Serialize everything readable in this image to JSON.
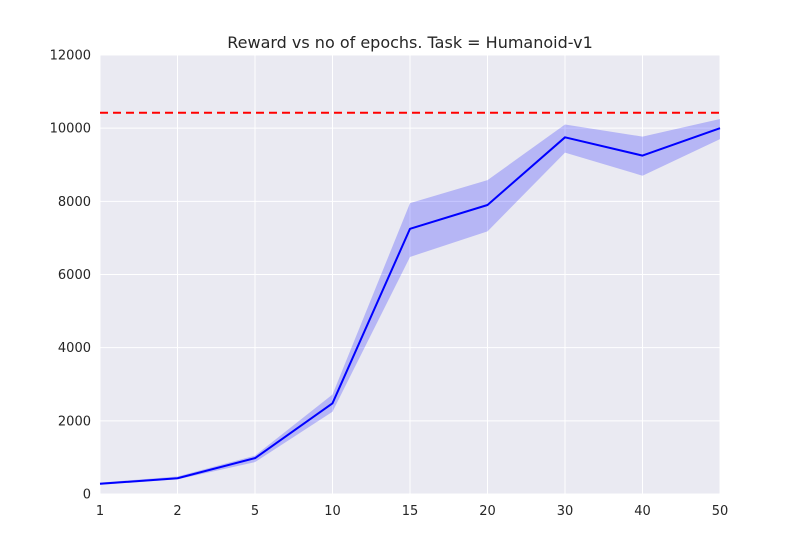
{
  "chart_data": {
    "type": "line",
    "title": "Reward vs no of epochs. Task = Humanoid-v1",
    "xlabel": "",
    "ylabel": "",
    "x_scale": "categorical (evenly spaced)",
    "categories": [
      "1",
      "2",
      "5",
      "10",
      "15",
      "20",
      "30",
      "40",
      "50"
    ],
    "ylim": [
      0,
      12000
    ],
    "yticks": [
      0,
      2000,
      4000,
      6000,
      8000,
      10000,
      12000
    ],
    "grid": true,
    "legend": "none",
    "series": [
      {
        "values": [
          280,
          430,
          980,
          2480,
          7250,
          7900,
          9750,
          9250,
          10000
        ],
        "lower": [
          250,
          400,
          870,
          2250,
          6480,
          7180,
          9330,
          8700,
          9700
        ],
        "upper": [
          310,
          480,
          1050,
          2720,
          7950,
          8580,
          10100,
          9770,
          10250
        ],
        "color": "#0000ff",
        "band_color": "#0000ff"
      }
    ],
    "reference_line": {
      "value": 10420,
      "style": "dashed",
      "color": "#ff0000"
    },
    "colors": {
      "plot_background": "#eaeaf2",
      "grid": "#ffffff"
    }
  }
}
